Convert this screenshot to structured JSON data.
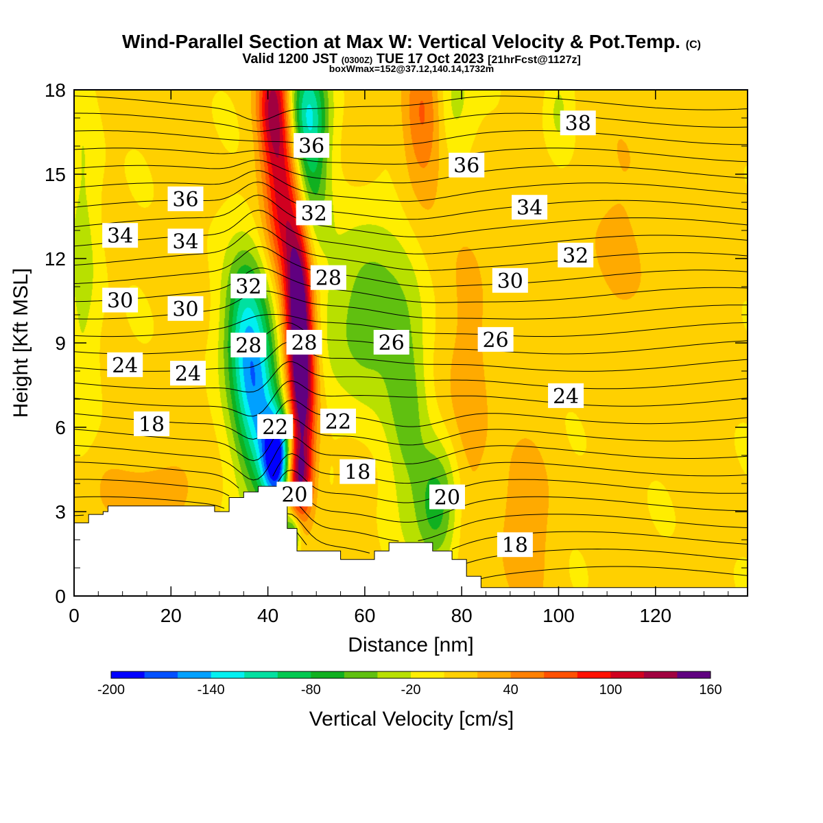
{
  "chart_data": {
    "type": "heatmap",
    "title": "Wind-Parallel Section at Max W: Vertical Velocity & Pot.Temp.",
    "title_mark": "(C)",
    "subtitle_main": "Valid 1200 JST",
    "subtitle_z": "(0300Z)",
    "subtitle_date": "TUE 17 Oct 2023",
    "subtitle_fcst": "[21hrFcst@1127z]",
    "subtitle_box": "boxWmax=152@37.12,140.14,1732m",
    "xlabel": "Distance [nm]",
    "ylabel": "Height [Kft MSL]",
    "xlim": [
      0,
      139
    ],
    "ylim": [
      0,
      18
    ],
    "xticks": [
      0,
      20,
      40,
      60,
      80,
      100,
      120
    ],
    "yticks": [
      0,
      3,
      6,
      9,
      12,
      15,
      18
    ],
    "colorbar": {
      "label": "Vertical Velocity [cm/s]",
      "ticks": [
        -200,
        -140,
        -80,
        -20,
        40,
        100,
        160
      ],
      "levels": [
        -200,
        -180,
        -160,
        -140,
        -120,
        -100,
        -80,
        -60,
        -40,
        -20,
        0,
        20,
        40,
        60,
        80,
        100,
        120,
        140,
        160
      ],
      "colors": [
        "#0000ff",
        "#0050ff",
        "#00a0ff",
        "#00f0f0",
        "#00e0a0",
        "#00c850",
        "#10b020",
        "#60c010",
        "#b8e000",
        "#ffee00",
        "#ffd000",
        "#ffaa00",
        "#ff8000",
        "#ff5000",
        "#ff1000",
        "#d00020",
        "#a00040",
        "#600080"
      ]
    },
    "terrain_kft": [
      [
        0,
        2.6
      ],
      [
        3,
        2.6
      ],
      [
        3,
        2.9
      ],
      [
        6,
        2.9
      ],
      [
        6,
        3.0
      ],
      [
        7,
        3.0
      ],
      [
        7,
        3.2
      ],
      [
        29,
        3.2
      ],
      [
        29,
        3.0
      ],
      [
        32,
        3.0
      ],
      [
        32,
        3.5
      ],
      [
        35,
        3.5
      ],
      [
        35,
        3.7
      ],
      [
        38,
        3.7
      ],
      [
        38,
        3.9
      ],
      [
        44,
        3.9
      ],
      [
        44,
        2.4
      ],
      [
        46,
        2.4
      ],
      [
        46,
        1.6
      ],
      [
        55,
        1.6
      ],
      [
        55,
        1.3
      ],
      [
        62,
        1.3
      ],
      [
        62,
        1.6
      ],
      [
        65,
        1.6
      ],
      [
        65,
        1.9
      ],
      [
        74,
        1.9
      ],
      [
        74,
        1.6
      ],
      [
        78,
        1.6
      ],
      [
        78,
        1.3
      ],
      [
        81,
        1.3
      ],
      [
        81,
        0.7
      ],
      [
        84,
        0.7
      ],
      [
        84,
        0.3
      ],
      [
        139,
        0.3
      ]
    ],
    "w_field": [
      {
        "x": 42,
        "y": 4.8,
        "value": -200,
        "sx": 2.2,
        "sy": 1.2
      },
      {
        "x": 38,
        "y": 7.0,
        "value": -130,
        "sx": 3.2,
        "sy": 2.5
      },
      {
        "x": 35,
        "y": 9.5,
        "value": -90,
        "sx": 3.0,
        "sy": 2.0
      },
      {
        "x": 48,
        "y": 17.3,
        "value": -110,
        "sx": 3.0,
        "sy": 1.4
      },
      {
        "x": 49,
        "y": 14.8,
        "value": -60,
        "sx": 2.5,
        "sy": 1.8
      },
      {
        "x": 60,
        "y": 10.0,
        "value": -60,
        "sx": 6,
        "sy": 2.5
      },
      {
        "x": 69,
        "y": 6.5,
        "value": -45,
        "sx": 3,
        "sy": 3
      },
      {
        "x": 75,
        "y": 3.2,
        "value": -80,
        "sx": 3,
        "sy": 1.5
      },
      {
        "x": 2,
        "y": 12,
        "value": -35,
        "sx": 2.5,
        "sy": 5
      },
      {
        "x": 45,
        "y": 2.2,
        "value": -90,
        "sx": 1.2,
        "sy": 0.5
      },
      {
        "x": 78,
        "y": 17.5,
        "value": -40,
        "sx": 3,
        "sy": 1.5
      },
      {
        "x": 100,
        "y": 17.3,
        "value": -30,
        "sx": 2,
        "sy": 1.2
      },
      {
        "x": 47,
        "y": 7.5,
        "value": 160,
        "sx": 2.0,
        "sy": 2.4
      },
      {
        "x": 46,
        "y": 11.0,
        "value": 120,
        "sx": 2.0,
        "sy": 2.0
      },
      {
        "x": 43,
        "y": 14.5,
        "value": 100,
        "sx": 2.5,
        "sy": 2.2
      },
      {
        "x": 41,
        "y": 17.5,
        "value": 100,
        "sx": 2.2,
        "sy": 1.5
      },
      {
        "x": 46,
        "y": 4.2,
        "value": 110,
        "sx": 2.0,
        "sy": 1.0
      },
      {
        "x": 72,
        "y": 17.0,
        "value": 60,
        "sx": 3,
        "sy": 2.0
      },
      {
        "x": 82,
        "y": 7.5,
        "value": 30,
        "sx": 3,
        "sy": 4
      },
      {
        "x": 93,
        "y": 2.5,
        "value": 30,
        "sx": 4,
        "sy": 2
      },
      {
        "x": 115,
        "y": 13,
        "value": 15,
        "sx": 12,
        "sy": 3
      },
      {
        "x": 15,
        "y": 3.8,
        "value": 25,
        "sx": 8,
        "sy": 1
      }
    ],
    "theta_labels": [
      {
        "x": 23,
        "y": 14.1,
        "text": "36"
      },
      {
        "x": 9.5,
        "y": 12.8,
        "text": "34"
      },
      {
        "x": 23,
        "y": 12.6,
        "text": "34"
      },
      {
        "x": 9.5,
        "y": 10.5,
        "text": "30"
      },
      {
        "x": 23,
        "y": 10.2,
        "text": "30"
      },
      {
        "x": 10.5,
        "y": 8.2,
        "text": "24"
      },
      {
        "x": 23.5,
        "y": 7.9,
        "text": "24"
      },
      {
        "x": 16,
        "y": 6.1,
        "text": "18"
      },
      {
        "x": 36,
        "y": 11.0,
        "text": "32"
      },
      {
        "x": 36,
        "y": 8.9,
        "text": "28"
      },
      {
        "x": 41.5,
        "y": 6.0,
        "text": "22"
      },
      {
        "x": 45.5,
        "y": 3.6,
        "text": "20"
      },
      {
        "x": 49,
        "y": 16.0,
        "text": "36"
      },
      {
        "x": 49.5,
        "y": 13.6,
        "text": "32"
      },
      {
        "x": 52.5,
        "y": 11.3,
        "text": "28"
      },
      {
        "x": 47.5,
        "y": 9.0,
        "text": "28"
      },
      {
        "x": 54.5,
        "y": 6.2,
        "text": "22"
      },
      {
        "x": 58.5,
        "y": 4.4,
        "text": "18"
      },
      {
        "x": 65.5,
        "y": 9.0,
        "text": "26"
      },
      {
        "x": 81,
        "y": 15.3,
        "text": "36"
      },
      {
        "x": 104,
        "y": 16.8,
        "text": "38"
      },
      {
        "x": 94,
        "y": 13.8,
        "text": "34"
      },
      {
        "x": 103.5,
        "y": 12.1,
        "text": "32"
      },
      {
        "x": 90,
        "y": 11.2,
        "text": "30"
      },
      {
        "x": 87,
        "y": 9.1,
        "text": "26"
      },
      {
        "x": 101.5,
        "y": 7.1,
        "text": "24"
      },
      {
        "x": 77,
        "y": 3.5,
        "text": "20"
      },
      {
        "x": 91,
        "y": 1.8,
        "text": "18"
      }
    ]
  }
}
